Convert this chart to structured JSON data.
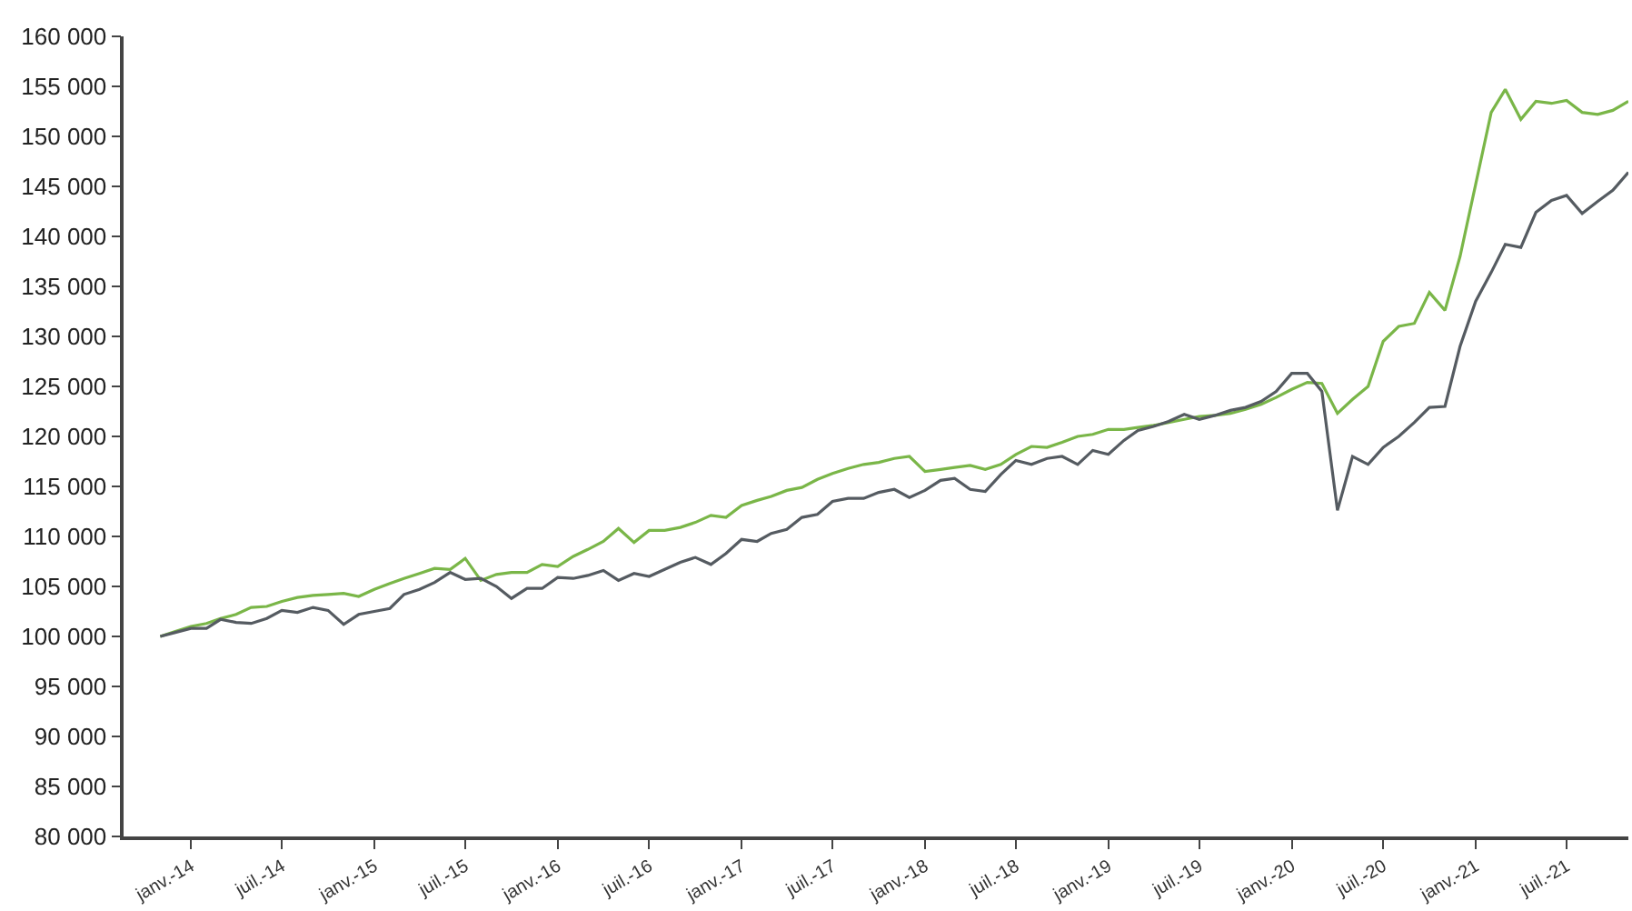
{
  "chart_data": {
    "type": "line",
    "x": [
      "2013-11",
      "2013-12",
      "2014-01",
      "2014-02",
      "2014-03",
      "2014-04",
      "2014-05",
      "2014-06",
      "2014-07",
      "2014-08",
      "2014-09",
      "2014-10",
      "2014-11",
      "2014-12",
      "2015-01",
      "2015-02",
      "2015-03",
      "2015-04",
      "2015-05",
      "2015-06",
      "2015-07",
      "2015-08",
      "2015-09",
      "2015-10",
      "2015-11",
      "2015-12",
      "2016-01",
      "2016-02",
      "2016-03",
      "2016-04",
      "2016-05",
      "2016-06",
      "2016-07",
      "2016-08",
      "2016-09",
      "2016-10",
      "2016-11",
      "2016-12",
      "2017-01",
      "2017-02",
      "2017-03",
      "2017-04",
      "2017-05",
      "2017-06",
      "2017-07",
      "2017-08",
      "2017-09",
      "2017-10",
      "2017-11",
      "2017-12",
      "2018-01",
      "2018-02",
      "2018-03",
      "2018-04",
      "2018-05",
      "2018-06",
      "2018-07",
      "2018-08",
      "2018-09",
      "2018-10",
      "2018-11",
      "2018-12",
      "2019-01",
      "2019-02",
      "2019-03",
      "2019-04",
      "2019-05",
      "2019-06",
      "2019-07",
      "2019-08",
      "2019-09",
      "2019-10",
      "2019-11",
      "2019-12",
      "2020-01",
      "2020-02",
      "2020-03",
      "2020-04",
      "2020-05",
      "2020-06",
      "2020-07",
      "2020-08",
      "2020-09",
      "2020-10",
      "2020-11",
      "2020-12",
      "2021-01",
      "2021-02",
      "2021-03",
      "2021-04",
      "2021-05",
      "2021-06",
      "2021-07",
      "2021-08",
      "2021-09",
      "2021-10",
      "2021-11"
    ],
    "series": [
      {
        "color": "#7ab648",
        "values": [
          100000,
          100500,
          101000,
          101300,
          101800,
          102200,
          102900,
          103000,
          103500,
          103900,
          104100,
          104200,
          104300,
          104000,
          104700,
          105300,
          105800,
          106300,
          106800,
          106700,
          107800,
          105600,
          106200,
          106400,
          106400,
          107200,
          107000,
          108000,
          108700,
          109500,
          110800,
          109400,
          110600,
          110600,
          110900,
          111400,
          112100,
          111900,
          113100,
          113600,
          114000,
          114600,
          114900,
          115700,
          116300,
          116800,
          117200,
          117400,
          117800,
          118000,
          116500,
          116700,
          116900,
          117100,
          116700,
          117200,
          118200,
          119000,
          118900,
          119400,
          120000,
          120200,
          120700,
          120700,
          120900,
          121100,
          121400,
          121700,
          122000,
          122100,
          122300,
          122700,
          123200,
          123900,
          124700,
          125400,
          125300,
          122300,
          123700,
          125000,
          129500,
          131000,
          131300,
          134400,
          132600,
          138000,
          145200,
          152400,
          154700,
          151700,
          153500,
          153300,
          153600,
          152400,
          152200,
          152600,
          153500
        ]
      },
      {
        "color": "#555b61",
        "values": [
          100000,
          100400,
          100800,
          100800,
          101700,
          101400,
          101300,
          101800,
          102600,
          102400,
          102900,
          102600,
          101200,
          102200,
          102500,
          102800,
          104200,
          104700,
          105400,
          106400,
          105700,
          105800,
          105000,
          103800,
          104800,
          104800,
          105900,
          105800,
          106100,
          106600,
          105600,
          106300,
          106000,
          106700,
          107400,
          107900,
          107200,
          108300,
          109700,
          109500,
          110300,
          110700,
          111900,
          112200,
          113500,
          113800,
          113800,
          114400,
          114700,
          113900,
          114600,
          115600,
          115800,
          114700,
          114500,
          116200,
          117600,
          117200,
          117800,
          118000,
          117200,
          118600,
          118200,
          119600,
          120600,
          121000,
          121500,
          122200,
          121700,
          122100,
          122600,
          122900,
          123500,
          124500,
          126300,
          126300,
          124500,
          112600,
          118000,
          117200,
          118900,
          120000,
          121400,
          122900,
          123000,
          129000,
          133500,
          136400,
          139200,
          138900,
          142400,
          143600,
          144100,
          142300,
          143500,
          144600,
          146400
        ]
      }
    ],
    "xlim": [
      "2013-08-20",
      "2021-11-01"
    ],
    "xticks": [
      {
        "value": "2014-01",
        "label": "janv.-14"
      },
      {
        "value": "2014-07",
        "label": "juil.-14"
      },
      {
        "value": "2015-01",
        "label": "janv.-15"
      },
      {
        "value": "2015-07",
        "label": "juil.-15"
      },
      {
        "value": "2016-01",
        "label": "janv.-16"
      },
      {
        "value": "2016-07",
        "label": "juil.-16"
      },
      {
        "value": "2017-01",
        "label": "janv.-17"
      },
      {
        "value": "2017-07",
        "label": "juil.-17"
      },
      {
        "value": "2018-01",
        "label": "janv.-18"
      },
      {
        "value": "2018-07",
        "label": "juil.-18"
      },
      {
        "value": "2019-01",
        "label": "janv.-19"
      },
      {
        "value": "2019-07",
        "label": "juil.-19"
      },
      {
        "value": "2020-01",
        "label": "janv.-20"
      },
      {
        "value": "2020-07",
        "label": "juil.-20"
      },
      {
        "value": "2021-01",
        "label": "janv.-21"
      },
      {
        "value": "2021-07",
        "label": "juil.-21"
      }
    ],
    "ylim": [
      80000,
      160000
    ],
    "yticks": [
      {
        "value": 80000,
        "label": "80 000"
      },
      {
        "value": 85000,
        "label": "85 000"
      },
      {
        "value": 90000,
        "label": "90 000"
      },
      {
        "value": 95000,
        "label": "95 000"
      },
      {
        "value": 100000,
        "label": "100 000"
      },
      {
        "value": 105000,
        "label": "105 000"
      },
      {
        "value": 110000,
        "label": "110 000"
      },
      {
        "value": 115000,
        "label": "115 000"
      },
      {
        "value": 120000,
        "label": "120 000"
      },
      {
        "value": 125000,
        "label": "125 000"
      },
      {
        "value": 130000,
        "label": "130 000"
      },
      {
        "value": 135000,
        "label": "135 000"
      },
      {
        "value": 140000,
        "label": "140 000"
      },
      {
        "value": 145000,
        "label": "145 000"
      },
      {
        "value": 150000,
        "label": "150 000"
      },
      {
        "value": 155000,
        "label": "155 000"
      },
      {
        "value": 160000,
        "label": "160 000"
      }
    ],
    "marker": "none",
    "line_style": "solid"
  }
}
